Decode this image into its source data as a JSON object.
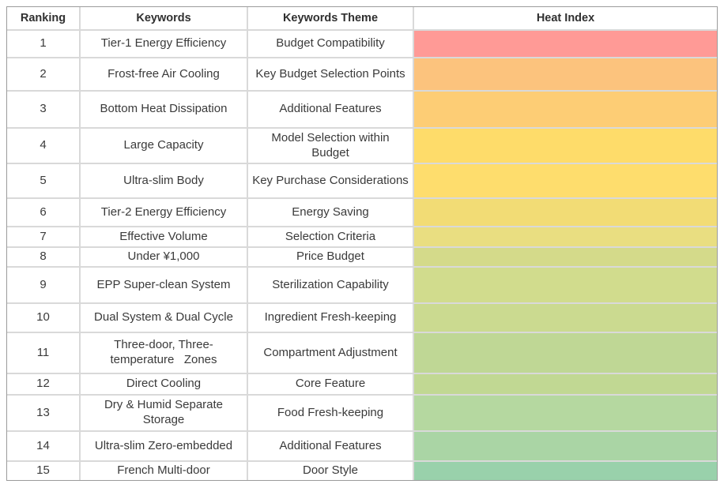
{
  "chart_data": {
    "type": "table",
    "columns": [
      "Ranking",
      "Keywords",
      "Keywords Theme",
      "Heat Index"
    ],
    "heat_index_encoding": "color bar only, gradient from red (rank 1, hottest) through orange/yellow to green (rank 15, coolest); no numeric values shown",
    "rows": [
      {
        "ranking": "1",
        "keywords": "Tier-1 Energy Efficiency",
        "keywords_theme": "Budget Compatibility",
        "heat_color": "#FF9A96"
      },
      {
        "ranking": "2",
        "keywords": "Frost-free Air Cooling",
        "keywords_theme": "Key Budget Selection Points",
        "heat_color": "#FCC37D"
      },
      {
        "ranking": "3",
        "keywords": "Bottom Heat Dissipation",
        "keywords_theme": "Additional Features",
        "heat_color": "#FDCD75"
      },
      {
        "ranking": "4",
        "keywords": "Large Capacity",
        "keywords_theme": "Model Selection within\nBudget",
        "heat_color": "#FEDC6A"
      },
      {
        "ranking": "5",
        "keywords": "Ultra-slim Body",
        "keywords_theme": "Key Purchase Considerations",
        "heat_color": "#FEDD6D"
      },
      {
        "ranking": "6",
        "keywords": "Tier-2 Energy Efficiency",
        "keywords_theme": "Energy Saving",
        "heat_color": "#F2DC75"
      },
      {
        "ranking": "7",
        "keywords": "Effective Volume",
        "keywords_theme": "Selection Criteria",
        "heat_color": "#E9DE81"
      },
      {
        "ranking": "8",
        "keywords": "Under ¥1,000",
        "keywords_theme": "Price Budget",
        "heat_color": "#D4DA8A"
      },
      {
        "ranking": "9",
        "keywords": "EPP Super-clean System",
        "keywords_theme": "Sterilization Capability",
        "heat_color": "#D1DC8D"
      },
      {
        "ranking": "10",
        "keywords": "Dual System & Dual Cycle",
        "keywords_theme": "Ingredient Fresh-keeping",
        "heat_color": "#CBDA90"
      },
      {
        "ranking": "11",
        "keywords": "Three-door, Three-\ntemperature   Zones",
        "keywords_theme": "Compartment Adjustment",
        "heat_color": "#BFD795"
      },
      {
        "ranking": "12",
        "keywords": "Direct Cooling",
        "keywords_theme": "Core Feature",
        "heat_color": "#C1D893"
      },
      {
        "ranking": "13",
        "keywords": "Dry & Humid Separate\nStorage",
        "keywords_theme": "Food Fresh-keeping",
        "heat_color": "#B5D8A0"
      },
      {
        "ranking": "14",
        "keywords": "Ultra-slim Zero-embedded",
        "keywords_theme": "Additional Features",
        "heat_color": "#AAD5A5"
      },
      {
        "ranking": "15",
        "keywords": "French Multi-door",
        "keywords_theme": "Door Style",
        "heat_color": "#99D1AB"
      }
    ]
  }
}
